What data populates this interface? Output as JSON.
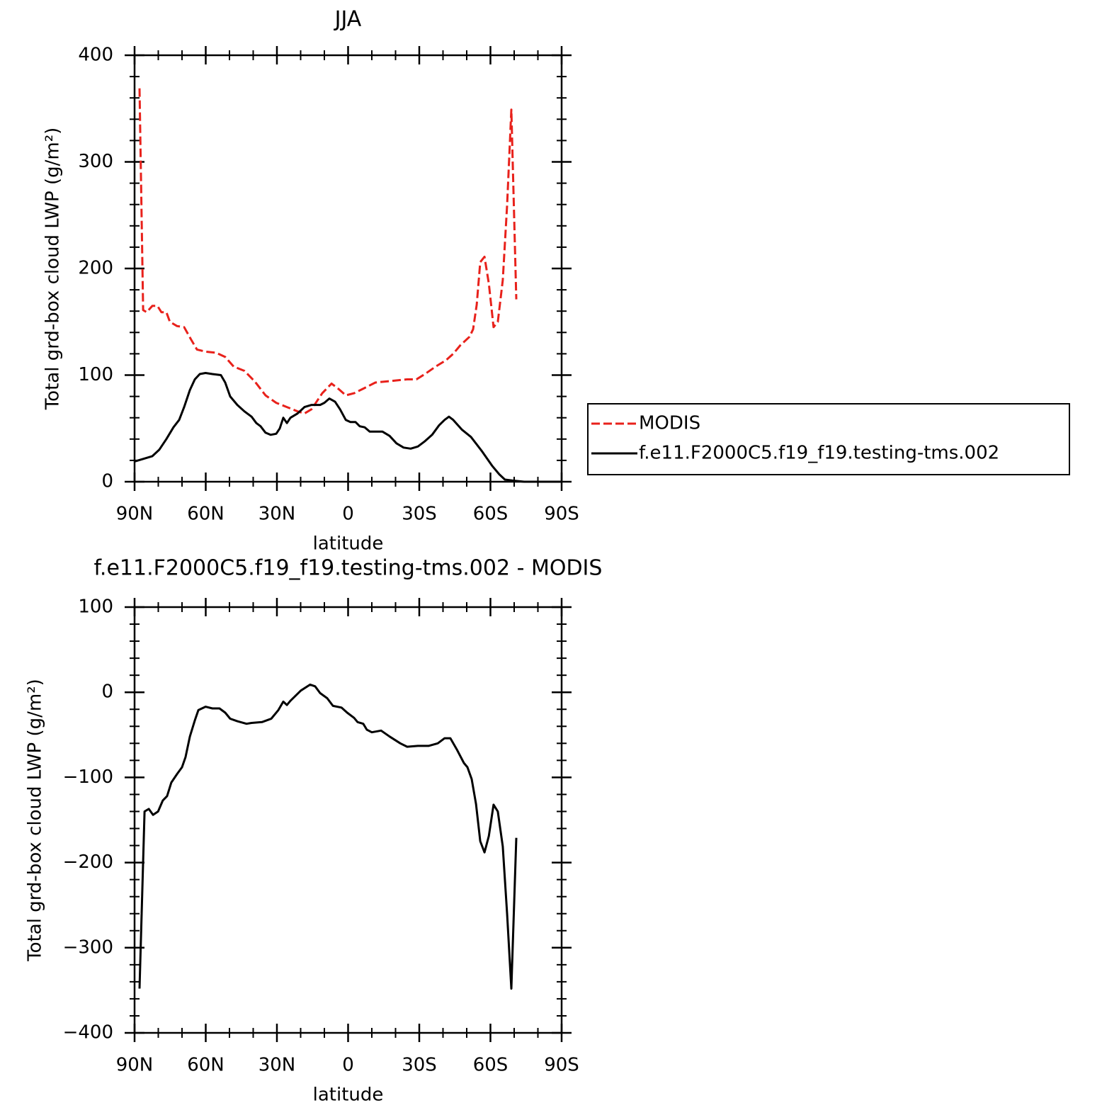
{
  "chart_data": [
    {
      "type": "line",
      "title": "JJA",
      "xlabel": "latitude",
      "ylabel": "Total grd-box cloud LWP (g/m²)",
      "xlim": [
        90,
        -90
      ],
      "xticks": [
        {
          "value": 90,
          "label": "90N"
        },
        {
          "value": 60,
          "label": "60N"
        },
        {
          "value": 30,
          "label": "30N"
        },
        0,
        {
          "value": -30,
          "label": "30S"
        },
        {
          "value": -60,
          "label": "60S"
        },
        {
          "value": -90,
          "label": "90S"
        }
      ],
      "ylim": [
        0,
        400
      ],
      "yticks": [
        0,
        100,
        200,
        300,
        400
      ],
      "series": [
        {
          "name": "MODIS",
          "color": "#e8211b",
          "dashed": true,
          "x": [
            87.9,
            86.4,
            84.9,
            82.5,
            80.4,
            78.7,
            76.6,
            75.1,
            72.1,
            69.1,
            66.1,
            63.7,
            60.1,
            55.7,
            51.8,
            48.2,
            43.7,
            39.3,
            34.8,
            30.3,
            25.8,
            21.3,
            18.4,
            15.4,
            10.9,
            7.0,
            4.0,
            1.0,
            -2.5,
            -7.0,
            -11.5,
            -16.0,
            -20.4,
            -24.9,
            -28.8,
            -32.4,
            -36.9,
            -41.3,
            -44.3,
            -47.3,
            -51.2,
            -52.7,
            -54.2,
            -55.7,
            -57.5,
            -59.3,
            -61.3,
            -63.1,
            -65.2,
            -67.0,
            -68.8,
            -70.9
          ],
          "values": [
            369,
            161,
            159,
            165,
            165,
            159,
            159,
            150,
            146,
            145,
            133,
            124,
            122,
            121,
            117,
            108,
            104,
            94,
            81,
            74,
            70,
            66,
            64,
            68,
            83,
            92,
            87,
            81,
            83,
            88,
            93,
            94,
            95,
            96,
            96,
            101,
            108,
            114,
            120,
            128,
            136,
            143,
            166,
            206,
            211,
            186,
            145,
            150,
            189,
            259,
            349,
            171
          ]
        },
        {
          "name": "f.e11.F2000C5.f19_f19.testing-tms.002",
          "color": "#000000",
          "dashed": false,
          "x": [
            90,
            85.5,
            82.5,
            79.6,
            76.6,
            73.6,
            71.2,
            69.1,
            66.7,
            64.6,
            62.5,
            60.1,
            57.2,
            53.6,
            51.8,
            49.7,
            46.7,
            43.7,
            40.7,
            38.7,
            36.9,
            34.8,
            32.7,
            30.3,
            28.8,
            27.3,
            25.8,
            24.3,
            21.3,
            18.4,
            15.4,
            11.8,
            10.0,
            7.9,
            5.5,
            3.4,
            1.0,
            -1.0,
            -3.1,
            -4.9,
            -7.0,
            -9.1,
            -11.5,
            -14.5,
            -17.5,
            -20.4,
            -23.4,
            -26.4,
            -29.4,
            -32.4,
            -35.4,
            -38.4,
            -40.7,
            -42.5,
            -44.3,
            -47.9,
            -51.8,
            -56.3,
            -60.7,
            -63.7,
            -66.1,
            -69.7,
            -74.2,
            -90
          ],
          "values": [
            19,
            22,
            24,
            30,
            40,
            51,
            58,
            70,
            86,
            96,
            101,
            102,
            101,
            100,
            93,
            80,
            72,
            66,
            61,
            55,
            52,
            46,
            44,
            45,
            50,
            60,
            55,
            60,
            64,
            70,
            72,
            72,
            74,
            78,
            75,
            68,
            58,
            56,
            56,
            52,
            51,
            47,
            47,
            47,
            43,
            36,
            32,
            31,
            33,
            38,
            44,
            53,
            58,
            61,
            58,
            49,
            42,
            29,
            15,
            7,
            2,
            1,
            0,
            0
          ]
        }
      ]
    },
    {
      "type": "line",
      "title": "f.e11.F2000C5.f19_f19.testing-tms.002 - MODIS",
      "xlabel": "latitude",
      "ylabel": "Total grd-box cloud LWP (g/m²)",
      "xlim": [
        90,
        -90
      ],
      "xticks": [
        {
          "value": 90,
          "label": "90N"
        },
        {
          "value": 60,
          "label": "60N"
        },
        {
          "value": 30,
          "label": "30N"
        },
        0,
        {
          "value": -30,
          "label": "30S"
        },
        {
          "value": -60,
          "label": "60S"
        },
        {
          "value": -90,
          "label": "90S"
        }
      ],
      "ylim": [
        -400,
        100
      ],
      "yticks": [
        {
          "value": -400,
          "label": "−400"
        },
        {
          "value": -300,
          "label": "−300"
        },
        {
          "value": -200,
          "label": "−200"
        },
        {
          "value": -100,
          "label": "−100"
        },
        0,
        100
      ],
      "series": [
        {
          "color": "#000000",
          "dashed": false,
          "x": [
            87.9,
            85.8,
            84.0,
            82.2,
            80.1,
            78.1,
            76.3,
            74.5,
            72.1,
            70.0,
            68.5,
            66.7,
            64.6,
            63.1,
            60.1,
            57.2,
            54.2,
            51.8,
            49.7,
            46.7,
            42.8,
            40.7,
            36.3,
            32.4,
            29.4,
            27.3,
            25.8,
            24.3,
            19.9,
            16.0,
            13.9,
            11.8,
            8.8,
            6.4,
            2.8,
            0.4,
            -2.5,
            -4.0,
            -6.4,
            -7.9,
            -10.0,
            -13.9,
            -17.5,
            -22.0,
            -24.9,
            -29.4,
            -33.9,
            -37.8,
            -40.7,
            -43.1,
            -45.8,
            -48.8,
            -50.3,
            -52.1,
            -53.9,
            -55.7,
            -57.5,
            -59.3,
            -61.3,
            -63.1,
            -65.2,
            -67.0,
            -68.8,
            -70.9
          ],
          "values": [
            -348,
            -140,
            -137,
            -144,
            -140,
            -127,
            -122,
            -106,
            -96,
            -88,
            -76,
            -52,
            -33,
            -21,
            -17,
            -19,
            -19,
            -24,
            -31,
            -34,
            -37,
            -36,
            -35,
            -31,
            -21,
            -11,
            -15,
            -10,
            2,
            9,
            7,
            -1,
            -7,
            -16,
            -18,
            -24,
            -30,
            -35,
            -37,
            -44,
            -47,
            -45,
            -52,
            -60,
            -64,
            -63,
            -63,
            -60,
            -54,
            -54,
            -67,
            -83,
            -88,
            -102,
            -131,
            -175,
            -188,
            -169,
            -132,
            -140,
            -181,
            -260,
            -348,
            -171
          ]
        }
      ]
    }
  ]
}
